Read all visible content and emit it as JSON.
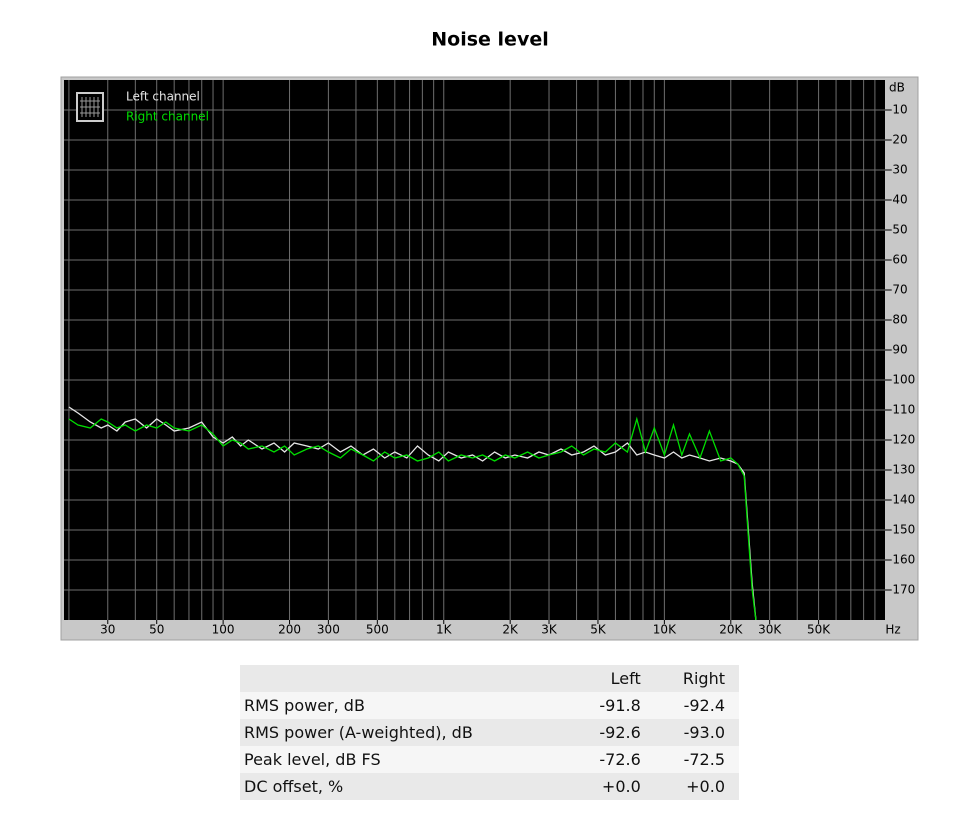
{
  "chart_data": {
    "type": "line",
    "title": "Noise level",
    "x_unit": "Hz",
    "y_unit": "dB",
    "log_x": true,
    "xlim": [
      19,
      100000
    ],
    "ylim": [
      -180,
      0
    ],
    "xticks": [
      {
        "value": 30,
        "label": "30"
      },
      {
        "value": 50,
        "label": "50"
      },
      {
        "value": 100,
        "label": "100"
      },
      {
        "value": 200,
        "label": "200"
      },
      {
        "value": 300,
        "label": "300"
      },
      {
        "value": 500,
        "label": "500"
      },
      {
        "value": 1000,
        "label": "1K"
      },
      {
        "value": 2000,
        "label": "2K"
      },
      {
        "value": 3000,
        "label": "3K"
      },
      {
        "value": 5000,
        "label": "5K"
      },
      {
        "value": 10000,
        "label": "10K"
      },
      {
        "value": 20000,
        "label": "20K"
      },
      {
        "value": 30000,
        "label": "30K"
      },
      {
        "value": 50000,
        "label": "50K"
      }
    ],
    "x_gridlines": [
      20,
      30,
      40,
      50,
      60,
      70,
      80,
      90,
      100,
      200,
      300,
      400,
      500,
      600,
      700,
      800,
      900,
      1000,
      2000,
      3000,
      4000,
      5000,
      6000,
      7000,
      8000,
      9000,
      10000,
      20000,
      30000,
      40000,
      50000,
      60000,
      70000,
      80000,
      90000
    ],
    "yticks": [
      -10,
      -20,
      -30,
      -40,
      -50,
      -60,
      -70,
      -80,
      -90,
      -100,
      -110,
      -120,
      -130,
      -140,
      -150,
      -160,
      -170
    ],
    "grid": true,
    "x": [
      20,
      22,
      25,
      28,
      30,
      33,
      36,
      40,
      45,
      50,
      55,
      60,
      70,
      80,
      90,
      100,
      110,
      120,
      130,
      150,
      170,
      190,
      210,
      240,
      270,
      300,
      340,
      380,
      430,
      480,
      540,
      600,
      680,
      760,
      850,
      950,
      1050,
      1200,
      1350,
      1500,
      1700,
      1900,
      2100,
      2400,
      2700,
      3000,
      3400,
      3800,
      4300,
      4800,
      5400,
      6000,
      6800,
      7500,
      8200,
      9000,
      10000,
      11000,
      12000,
      13000,
      14500,
      16000,
      18000,
      20000,
      21500,
      23000,
      24000,
      25000,
      26000
    ],
    "series": [
      {
        "name": "Left channel",
        "color": "#e6e6e6",
        "values": [
          -109,
          -111,
          -114,
          -116,
          -115,
          -117,
          -114,
          -113,
          -116,
          -113,
          -115,
          -117,
          -116,
          -114,
          -119,
          -121,
          -119,
          -122,
          -120,
          -123,
          -121,
          -124,
          -121,
          -122,
          -123,
          -121,
          -124,
          -122,
          -125,
          -123,
          -126,
          -124,
          -126,
          -122,
          -125,
          -127,
          -124,
          -126,
          -125,
          -127,
          -124,
          -126,
          -125,
          -126,
          -124,
          -125,
          -123,
          -125,
          -124,
          -122,
          -125,
          -124,
          -121,
          -125,
          -124,
          -125,
          -126,
          -124,
          -126,
          -125,
          -126,
          -127,
          -126,
          -127,
          -128,
          -131,
          -150,
          -168,
          -180
        ]
      },
      {
        "name": "Right channel",
        "color": "#00dd00",
        "values": [
          -113,
          -115,
          -116,
          -113,
          -114,
          -116,
          -115,
          -117,
          -115,
          -116,
          -114,
          -116,
          -117,
          -115,
          -118,
          -122,
          -120,
          -121,
          -123,
          -122,
          -124,
          -122,
          -125,
          -123,
          -122,
          -124,
          -126,
          -123,
          -125,
          -127,
          -124,
          -126,
          -125,
          -127,
          -126,
          -124,
          -127,
          -125,
          -126,
          -125,
          -127,
          -125,
          -126,
          -124,
          -126,
          -125,
          -124,
          -122,
          -125,
          -123,
          -124,
          -121,
          -124,
          -113,
          -124,
          -116,
          -125,
          -115,
          -125,
          -118,
          -126,
          -117,
          -127,
          -126,
          -128,
          -132,
          -152,
          -170,
          -180
        ]
      }
    ]
  },
  "table": {
    "columns": [
      "Left",
      "Right"
    ],
    "rows": [
      {
        "label": "RMS power, dB",
        "values": [
          "-91.8",
          "-92.4"
        ]
      },
      {
        "label": "RMS power (A-weighted), dB",
        "values": [
          "-92.6",
          "-93.0"
        ]
      },
      {
        "label": "Peak level, dB FS",
        "values": [
          "-72.6",
          "-72.5"
        ]
      },
      {
        "label": "DC offset, %",
        "values": [
          "+0.0",
          "+0.0"
        ]
      }
    ]
  }
}
